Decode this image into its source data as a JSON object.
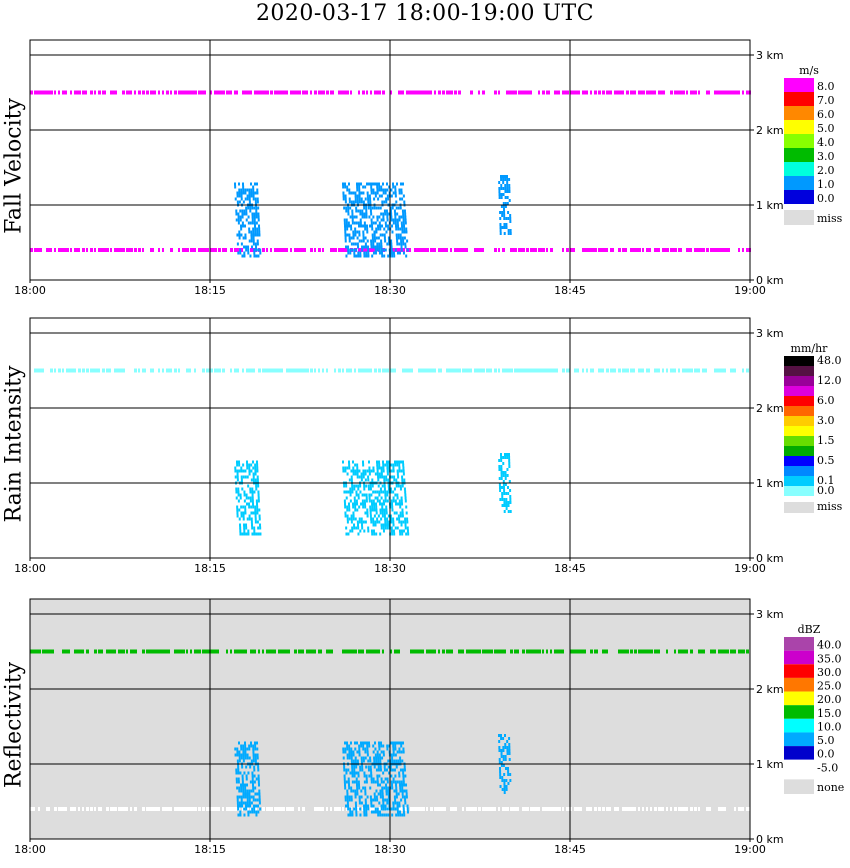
{
  "title": "2020-03-17   18:00-19:00 UTC",
  "x_ticks": [
    "18:00",
    "18:15",
    "18:30",
    "18:45",
    "19:00"
  ],
  "y_ticks": [
    "0 km",
    "1 km",
    "2 km",
    "3 km"
  ],
  "panels": [
    {
      "title": "Fall Velocity",
      "unit": "m/s",
      "background": "#ffffff",
      "colorbar": [
        {
          "label": "8.0",
          "color": "#ff00ff"
        },
        {
          "label": "7.0",
          "color": "#ff0000"
        },
        {
          "label": "6.0",
          "color": "#ff8800"
        },
        {
          "label": "5.0",
          "color": "#ffff00"
        },
        {
          "label": "4.0",
          "color": "#88ff00"
        },
        {
          "label": "3.0",
          "color": "#00bb00"
        },
        {
          "label": "2.0",
          "color": "#00ffdd"
        },
        {
          "label": "1.0",
          "color": "#0099ff"
        },
        {
          "label": "0.0",
          "color": "#0000dd"
        },
        {
          "label": "miss",
          "color": "#dddddd"
        }
      ]
    },
    {
      "title": "Rain Intensity",
      "unit": "mm/hr",
      "background": "#ffffff",
      "colorbar": [
        {
          "label": "48.0",
          "color": "#000000"
        },
        {
          "label": "",
          "color": "#551144"
        },
        {
          "label": "12.0",
          "color": "#990099"
        },
        {
          "label": "",
          "color": "#dd00dd"
        },
        {
          "label": "6.0",
          "color": "#ff0000"
        },
        {
          "label": "",
          "color": "#ff6600"
        },
        {
          "label": "3.0",
          "color": "#ffcc00"
        },
        {
          "label": "",
          "color": "#ffff00"
        },
        {
          "label": "1.5",
          "color": "#66dd00"
        },
        {
          "label": "",
          "color": "#00aa00"
        },
        {
          "label": "0.5",
          "color": "#0000ff"
        },
        {
          "label": "",
          "color": "#0088ff"
        },
        {
          "label": "0.1",
          "color": "#00ccff"
        },
        {
          "label": "0.0",
          "color": "#88ffff"
        },
        {
          "label": "miss",
          "color": "#dddddd"
        }
      ]
    },
    {
      "title": "Reflectivity",
      "unit": "dBZ",
      "background": "#dddddd",
      "colorbar": [
        {
          "label": "40.0",
          "color": "#aa44aa"
        },
        {
          "label": "35.0",
          "color": "#cc00cc"
        },
        {
          "label": "30.0",
          "color": "#ff0000"
        },
        {
          "label": "25.0",
          "color": "#ff7700"
        },
        {
          "label": "20.0",
          "color": "#ffff00"
        },
        {
          "label": "15.0",
          "color": "#00bb00"
        },
        {
          "label": "10.0",
          "color": "#00ffff"
        },
        {
          "label": "5.0",
          "color": "#00aaff"
        },
        {
          "label": "0.0",
          "color": "#0000cc"
        },
        {
          "label": "-5.0",
          "color": "#ffffff"
        },
        {
          "label": "none",
          "color": "#dddddd"
        }
      ]
    }
  ],
  "chart_data": [
    {
      "type": "heatmap",
      "title": "Fall Velocity",
      "xlabel": "",
      "ylabel": "",
      "x_range": [
        "18:00",
        "19:00"
      ],
      "y_range_km": [
        0,
        3.2
      ],
      "grid": true,
      "features": [
        {
          "kind": "band",
          "height_km": 2.5,
          "start": "18:00",
          "end": "19:00",
          "value": 8.0
        },
        {
          "kind": "band",
          "height_km": 0.4,
          "start": "18:00",
          "end": "19:00",
          "value": 8.0
        },
        {
          "kind": "cell",
          "start": "18:17",
          "end": "18:19",
          "bottom_km": 0.3,
          "top_km": 1.3,
          "value": 0.5
        },
        {
          "kind": "cell",
          "start": "18:26",
          "end": "18:28",
          "bottom_km": 0.3,
          "top_km": 1.3,
          "value": 0.5
        },
        {
          "kind": "cell",
          "start": "18:28",
          "end": "18:31",
          "bottom_km": 0.3,
          "top_km": 1.3,
          "value": 0.5
        },
        {
          "kind": "cell",
          "start": "18:39",
          "end": "18:40",
          "bottom_km": 0.6,
          "top_km": 1.4,
          "value": 0.5
        }
      ]
    },
    {
      "type": "heatmap",
      "title": "Rain Intensity",
      "xlabel": "",
      "ylabel": "",
      "x_range": [
        "18:00",
        "19:00"
      ],
      "y_range_km": [
        0,
        3.2
      ],
      "grid": true,
      "features": [
        {
          "kind": "band",
          "height_km": 2.5,
          "start": "18:00",
          "end": "19:00",
          "value": 0.0
        },
        {
          "kind": "cell",
          "start": "18:17",
          "end": "18:19",
          "bottom_km": 0.3,
          "top_km": 1.3,
          "value": 0.1
        },
        {
          "kind": "cell",
          "start": "18:26",
          "end": "18:28",
          "bottom_km": 0.3,
          "top_km": 1.3,
          "value": 0.1
        },
        {
          "kind": "cell",
          "start": "18:28",
          "end": "18:31",
          "bottom_km": 0.3,
          "top_km": 1.3,
          "value": 0.1
        },
        {
          "kind": "cell",
          "start": "18:39",
          "end": "18:40",
          "bottom_km": 0.6,
          "top_km": 1.4,
          "value": 0.1
        }
      ]
    },
    {
      "type": "heatmap",
      "title": "Reflectivity",
      "xlabel": "",
      "ylabel": "",
      "x_range": [
        "18:00",
        "19:00"
      ],
      "y_range_km": [
        0,
        3.2
      ],
      "grid": true,
      "features": [
        {
          "kind": "band",
          "height_km": 2.5,
          "start": "18:00",
          "end": "19:00",
          "value": 15.0
        },
        {
          "kind": "band",
          "height_km": 0.4,
          "start": "18:00",
          "end": "19:00",
          "value": -5.0
        },
        {
          "kind": "cell",
          "start": "18:17",
          "end": "18:19",
          "bottom_km": 0.3,
          "top_km": 1.3,
          "value": 5.0
        },
        {
          "kind": "cell",
          "start": "18:26",
          "end": "18:28",
          "bottom_km": 0.3,
          "top_km": 1.3,
          "value": 5.0
        },
        {
          "kind": "cell",
          "start": "18:28",
          "end": "18:31",
          "bottom_km": 0.3,
          "top_km": 1.3,
          "value": 5.0
        },
        {
          "kind": "cell",
          "start": "18:39",
          "end": "18:40",
          "bottom_km": 0.6,
          "top_km": 1.4,
          "value": 5.0
        }
      ]
    }
  ]
}
